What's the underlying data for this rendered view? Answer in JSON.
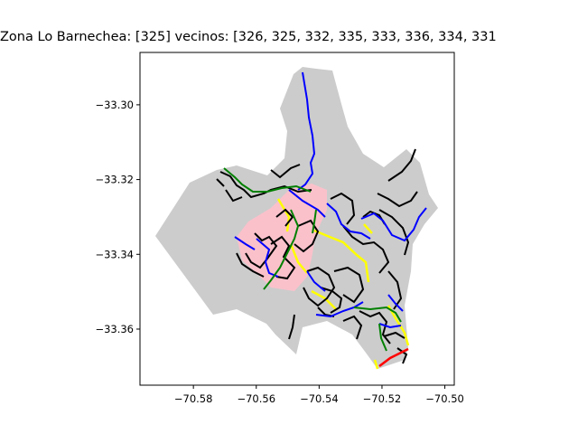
{
  "map": {
    "title": "Zona Lo Barnechea: [325] vecinos: [326, 325, 332, 335, 333, 336, 334, 331",
    "x_ticks": [
      "−70.58",
      "−70.56",
      "−70.54",
      "−70.52",
      "−70.50"
    ],
    "y_ticks": [
      "−33.30",
      "−33.32",
      "−33.34",
      "−33.36"
    ],
    "x_tick_values": [
      -70.58,
      -70.56,
      -70.54,
      -70.52,
      -70.5
    ],
    "y_tick_values": [
      -33.3,
      -33.32,
      -33.34,
      -33.36
    ],
    "xlim": [
      -70.597,
      -70.497
    ],
    "ylim": [
      -33.375,
      -33.286
    ],
    "colors": {
      "zone_fill": "#cccccc",
      "highlight_fill": "#ffc0cb",
      "streets_main": "#000000",
      "streets_blue": "#0000ff",
      "streets_green": "#008000",
      "streets_yellow": "#ffff00",
      "streets_red": "#ff0000"
    }
  }
}
